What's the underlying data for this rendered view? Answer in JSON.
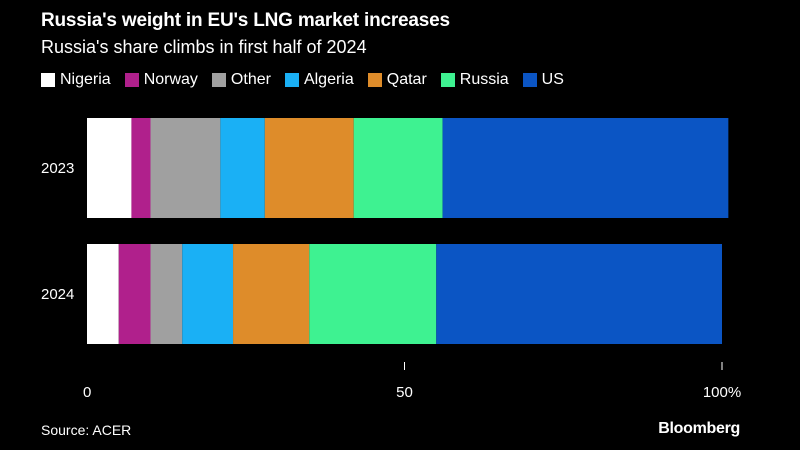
{
  "chart_data": {
    "type": "bar",
    "orientation": "horizontal",
    "stacked": true,
    "title": "Russia's weight in EU's LNG market increases",
    "subtitle": "Russia's share climbs in first half of 2024",
    "categories": [
      "2023",
      "2024"
    ],
    "series": [
      {
        "name": "Nigeria",
        "color": "#ffffff",
        "values": [
          7,
          5
        ]
      },
      {
        "name": "Norway",
        "color": "#b0208c",
        "values": [
          3,
          5
        ]
      },
      {
        "name": "Other",
        "color": "#a0a0a0",
        "values": [
          11,
          5
        ]
      },
      {
        "name": "Algeria",
        "color": "#1ab0f5",
        "values": [
          7,
          8
        ]
      },
      {
        "name": "Qatar",
        "color": "#de8c2a",
        "values": [
          14,
          12
        ]
      },
      {
        "name": "Russia",
        "color": "#3ef291",
        "values": [
          14,
          20
        ]
      },
      {
        "name": "US",
        "color": "#0b55c4",
        "values": [
          45,
          45
        ]
      }
    ],
    "xlim": [
      0,
      100
    ],
    "xticks": [
      {
        "value": 0,
        "label": "0"
      },
      {
        "value": 50,
        "label": "50"
      },
      {
        "value": 100,
        "label": "100%"
      }
    ],
    "xlabel": "",
    "ylabel": "",
    "grid": false,
    "legend_position": "top-left"
  },
  "footer": {
    "source": "Source: ACER",
    "brand": "Bloomberg"
  }
}
